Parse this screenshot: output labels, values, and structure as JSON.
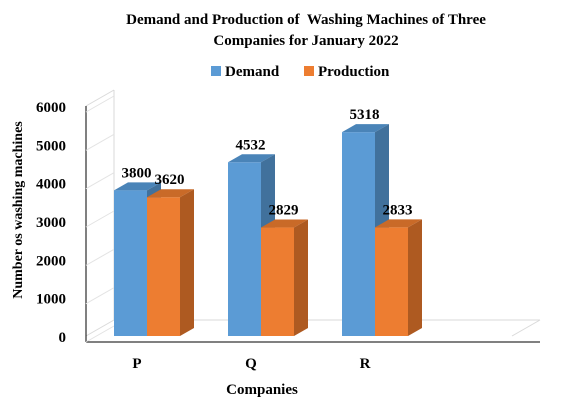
{
  "title_line1": "Demand and Production of  Washing Machines of Three",
  "title_line2": "Companies for January 2022",
  "chart_data": {
    "type": "bar",
    "title": "Demand and Production of  Washing Machines of Three Companies for January 2022",
    "categories": [
      "P",
      "Q",
      "R"
    ],
    "series": [
      {
        "name": "Demand",
        "values": [
          3800,
          4532,
          5318
        ],
        "color": "#5b9bd5"
      },
      {
        "name": "Production",
        "values": [
          3620,
          2829,
          2833
        ],
        "color": "#ed7d31"
      }
    ],
    "xlabel": "Companies",
    "ylabel": "Number os washing machines",
    "ylim": [
      0,
      6000
    ],
    "yticks": [
      0,
      1000,
      2000,
      3000,
      4000,
      5000,
      6000
    ],
    "legend_position": "top",
    "data_labels": true,
    "grid": false,
    "style": "3d-clustered-column"
  }
}
